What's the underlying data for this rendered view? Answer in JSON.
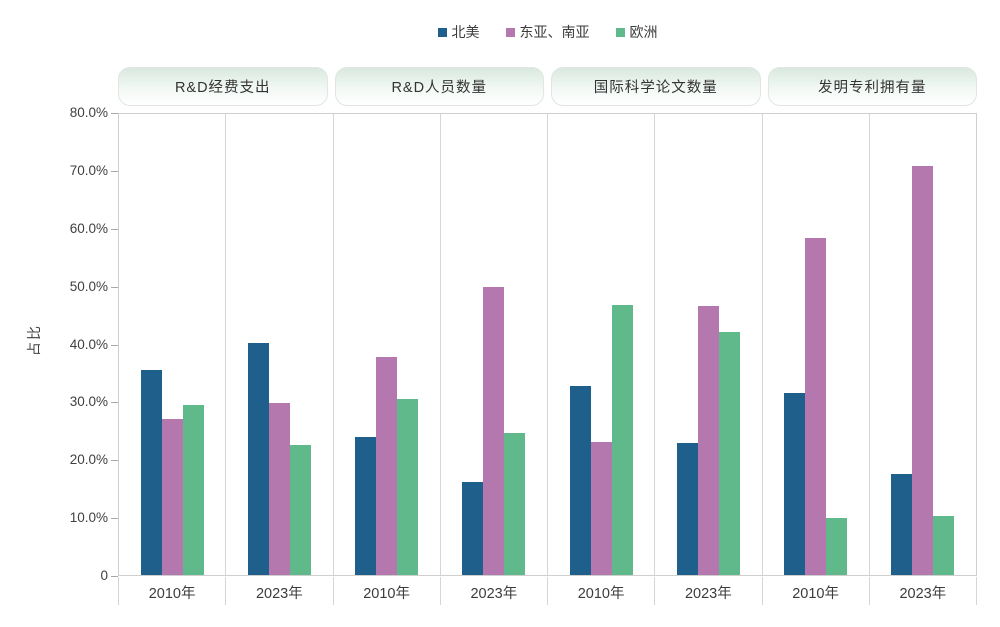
{
  "colors": {
    "series": [
      "#1f5f8b",
      "#b578ae",
      "#5fb98b"
    ],
    "grid_line": "#d6d6d6",
    "plot_border": "#cfcfcf",
    "header_fill_top": "#d8e9df",
    "text": "#404040"
  },
  "legend": {
    "items": [
      {
        "label": "北美",
        "color": "#1f5f8b"
      },
      {
        "label": "东亚、南亚",
        "color": "#b578ae"
      },
      {
        "label": "欧洲",
        "color": "#5fb98b"
      }
    ]
  },
  "y_axis": {
    "title": "占比",
    "tick_labels": [
      "80.0%",
      "70.0%",
      "60.0%",
      "50.0%",
      "40.0%",
      "30.0%",
      "20.0%",
      "10.0%",
      "0"
    ],
    "max": 80
  },
  "chart_data": {
    "type": "bar",
    "title": "",
    "ylabel": "占比",
    "xlabel": "",
    "ylim": [
      0,
      80
    ],
    "grid": false,
    "legend_position": "top-center",
    "series_names": [
      "北美",
      "东亚、南亚",
      "欧洲"
    ],
    "groups": [
      {
        "title": "R&D经费支出",
        "years": [
          {
            "label": "2010年",
            "values": [
              35.5,
              27.0,
              29.5
            ]
          },
          {
            "label": "2023年",
            "values": [
              40.3,
              29.9,
              22.5
            ]
          }
        ]
      },
      {
        "title": "R&D人员数量",
        "years": [
          {
            "label": "2010年",
            "values": [
              24.0,
              37.8,
              30.5
            ]
          },
          {
            "label": "2023年",
            "values": [
              16.2,
              50.0,
              24.7
            ]
          }
        ]
      },
      {
        "title": "国际科学论文数量",
        "years": [
          {
            "label": "2010年",
            "values": [
              32.8,
              23.1,
              46.8
            ]
          },
          {
            "label": "2023年",
            "values": [
              22.9,
              46.7,
              42.1
            ]
          }
        ]
      },
      {
        "title": "发明专利拥有量",
        "years": [
          {
            "label": "2010年",
            "values": [
              31.5,
              58.4,
              9.9
            ]
          },
          {
            "label": "2023年",
            "values": [
              17.5,
              70.9,
              10.3
            ]
          }
        ]
      }
    ]
  }
}
